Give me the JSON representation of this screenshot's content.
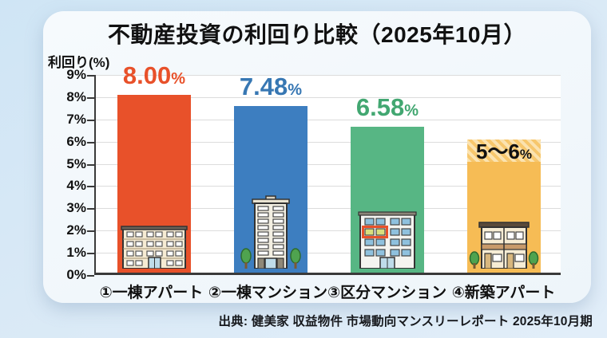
{
  "page": {
    "title": "不動産投資の利回り比較（2025年10月）",
    "source": "出典: 健美家 収益物件 市場動向マンスリーレポート 2025年10月期"
  },
  "chart_data": {
    "type": "bar",
    "title": "不動産投資の利回り比較（2025年10月）",
    "ylabel": "利回り(%)",
    "xlabel": "",
    "ylim": [
      0,
      9
    ],
    "yticks": [
      0,
      1,
      2,
      3,
      4,
      5,
      6,
      7,
      8,
      9
    ],
    "ytick_suffix": "%",
    "grid": true,
    "legend": false,
    "categories": [
      "①一棟アパート",
      "②一棟マンション",
      "③区分マンション",
      "④新築アパート"
    ],
    "values": [
      8.0,
      7.48,
      6.58,
      6
    ],
    "bars": [
      {
        "category": "①一棟アパート",
        "value": 8.0,
        "value_text": "8.00",
        "unit": "%",
        "color": "#e8512a",
        "label_color": "#e8512a",
        "icon": "apartment-building-icon"
      },
      {
        "category": "②一棟マンション",
        "value": 7.48,
        "value_text": "7.48",
        "unit": "%",
        "color": "#3d7ec0",
        "label_color": "#3777b3",
        "icon": "mansion-tower-icon"
      },
      {
        "category": "③区分マンション",
        "value": 6.58,
        "value_text": "6.58",
        "unit": "%",
        "color": "#57b684",
        "label_color": "#42a771",
        "icon": "condo-unit-icon"
      },
      {
        "category": "④新築アパート",
        "value": 6,
        "value_text": "5〜6",
        "unit": "%",
        "range_min": 5,
        "label_inside_hatch": true,
        "color": "#f6bc55",
        "label_color": "#111111",
        "icon": "new-apartment-icon"
      }
    ]
  },
  "colors": {
    "page_background": "#d9e9f6",
    "card_background": "#f4f9fc",
    "axis": "#3a3a3a",
    "gridline": "#dcdcdc",
    "hatch_light": "#fbe3b0",
    "hatch_dark": "#f7c76d"
  }
}
